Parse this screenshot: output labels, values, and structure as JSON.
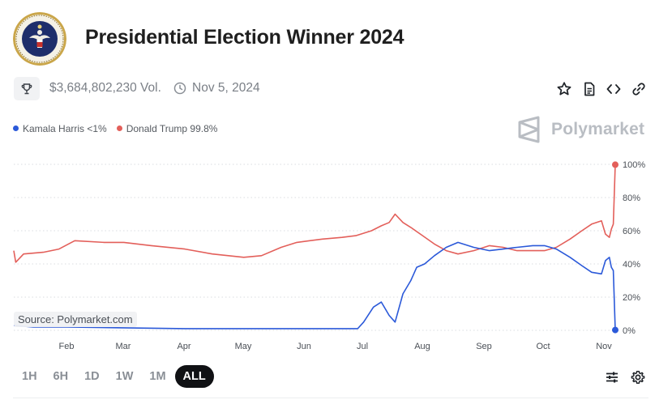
{
  "header": {
    "title": "Presidential Election Winner 2024",
    "volume": "$3,684,802,230 Vol.",
    "date": "Nov 5, 2024"
  },
  "icons": {
    "seal": "presidential-seal-icon",
    "trophy": "trophy-icon",
    "clock": "clock-icon",
    "star": "star-icon",
    "document": "document-icon",
    "embed": "code-icon",
    "link": "link-icon",
    "brand": "polymarket-logo-icon",
    "filters": "sliders-icon",
    "settings": "gear-icon"
  },
  "legend": [
    {
      "label": "Kamala Harris <1%",
      "color": "#2b59d9"
    },
    {
      "label": "Donald Trump 99.8%",
      "color": "#e35f5a"
    }
  ],
  "brand": {
    "name": "Polymarket"
  },
  "source": "Source: Polymarket.com",
  "range_buttons": [
    "1H",
    "6H",
    "1D",
    "1W",
    "1M",
    "ALL"
  ],
  "active_range": "ALL",
  "chart_data": {
    "type": "line",
    "x_tick_labels": [
      "Feb",
      "Mar",
      "Apr",
      "May",
      "Jun",
      "Jul",
      "Aug",
      "Sep",
      "Oct",
      "Nov"
    ],
    "y_tick_labels": [
      "0%",
      "20%",
      "40%",
      "60%",
      "80%",
      "100%"
    ],
    "ylim": [
      0,
      100
    ],
    "grid": "horizontal dotted",
    "y_axis_side": "right",
    "series": [
      {
        "name": "Donald Trump",
        "color": "#e35f5a",
        "points": [
          [
            "2024-01-05",
            48
          ],
          [
            "2024-01-06",
            41
          ],
          [
            "2024-01-10",
            46
          ],
          [
            "2024-01-20",
            47
          ],
          [
            "2024-01-28",
            49
          ],
          [
            "2024-02-05",
            54
          ],
          [
            "2024-02-20",
            53
          ],
          [
            "2024-03-01",
            53
          ],
          [
            "2024-03-15",
            51
          ],
          [
            "2024-04-01",
            49
          ],
          [
            "2024-04-15",
            46
          ],
          [
            "2024-05-01",
            44
          ],
          [
            "2024-05-10",
            45
          ],
          [
            "2024-05-20",
            50
          ],
          [
            "2024-05-28",
            53
          ],
          [
            "2024-06-10",
            55
          ],
          [
            "2024-06-20",
            56
          ],
          [
            "2024-06-27",
            57
          ],
          [
            "2024-07-05",
            60
          ],
          [
            "2024-07-10",
            63
          ],
          [
            "2024-07-14",
            65
          ],
          [
            "2024-07-17",
            70
          ],
          [
            "2024-07-21",
            65
          ],
          [
            "2024-07-25",
            62
          ],
          [
            "2024-07-31",
            57
          ],
          [
            "2024-08-06",
            52
          ],
          [
            "2024-08-12",
            48
          ],
          [
            "2024-08-18",
            46
          ],
          [
            "2024-08-26",
            48
          ],
          [
            "2024-09-03",
            51
          ],
          [
            "2024-09-10",
            50
          ],
          [
            "2024-09-17",
            48
          ],
          [
            "2024-09-25",
            48
          ],
          [
            "2024-10-01",
            48
          ],
          [
            "2024-10-07",
            50
          ],
          [
            "2024-10-14",
            55
          ],
          [
            "2024-10-20",
            60
          ],
          [
            "2024-10-25",
            64
          ],
          [
            "2024-10-30",
            66
          ],
          [
            "2024-11-01",
            58
          ],
          [
            "2024-11-03",
            56
          ],
          [
            "2024-11-04",
            61
          ],
          [
            "2024-11-05",
            64
          ],
          [
            "2024-11-06",
            99.8
          ]
        ]
      },
      {
        "name": "Kamala Harris",
        "color": "#2b59d9",
        "points": [
          [
            "2024-01-05",
            3
          ],
          [
            "2024-01-15",
            2
          ],
          [
            "2024-02-01",
            2
          ],
          [
            "2024-03-01",
            1.5
          ],
          [
            "2024-04-01",
            1
          ],
          [
            "2024-05-01",
            1
          ],
          [
            "2024-06-01",
            1
          ],
          [
            "2024-06-28",
            1
          ],
          [
            "2024-07-01",
            5
          ],
          [
            "2024-07-06",
            14
          ],
          [
            "2024-07-10",
            17
          ],
          [
            "2024-07-14",
            9
          ],
          [
            "2024-07-17",
            5
          ],
          [
            "2024-07-21",
            22
          ],
          [
            "2024-07-25",
            30
          ],
          [
            "2024-07-28",
            38
          ],
          [
            "2024-08-01",
            40
          ],
          [
            "2024-08-06",
            45
          ],
          [
            "2024-08-12",
            50
          ],
          [
            "2024-08-18",
            53
          ],
          [
            "2024-08-26",
            50
          ],
          [
            "2024-09-03",
            48
          ],
          [
            "2024-09-10",
            49
          ],
          [
            "2024-09-17",
            50
          ],
          [
            "2024-09-25",
            51
          ],
          [
            "2024-10-01",
            51
          ],
          [
            "2024-10-07",
            49
          ],
          [
            "2024-10-14",
            44
          ],
          [
            "2024-10-20",
            39
          ],
          [
            "2024-10-25",
            35
          ],
          [
            "2024-10-30",
            34
          ],
          [
            "2024-11-01",
            42
          ],
          [
            "2024-11-03",
            44
          ],
          [
            "2024-11-04",
            38
          ],
          [
            "2024-11-05",
            36
          ],
          [
            "2024-11-06",
            0.2
          ]
        ]
      }
    ]
  }
}
